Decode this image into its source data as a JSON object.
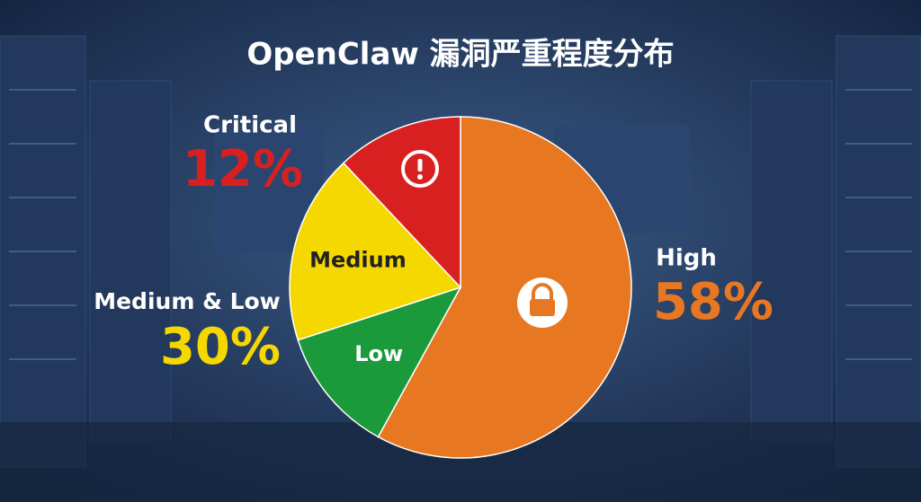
{
  "chart_data": {
    "type": "pie",
    "title": "OpenClaw 漏洞严重程度分布",
    "categories": [
      "High",
      "Low",
      "Medium",
      "Critical"
    ],
    "values": [
      58,
      12,
      18,
      12
    ],
    "value_labels": [
      "58%",
      null,
      null,
      "12%"
    ],
    "colors": [
      "#e87722",
      "#1a9a3a",
      "#f5d800",
      "#d92020"
    ],
    "inside_label_colors": [
      null,
      "#ffffff",
      "#222222",
      null
    ],
    "group": {
      "label": "Medium & Low",
      "value": 30,
      "value_label": "30%",
      "color": "#f5d800"
    }
  }
}
